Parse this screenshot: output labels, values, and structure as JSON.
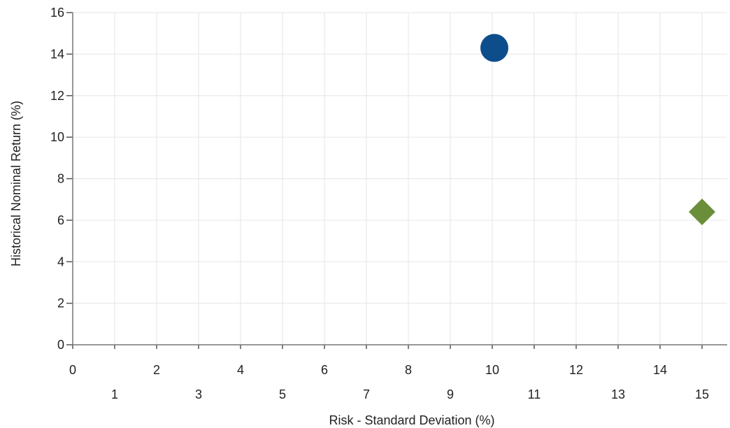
{
  "chart_data": {
    "type": "scatter",
    "title": "",
    "xlabel": "Risk - Standard Deviation (%)",
    "ylabel": "Historical Nominal Return (%)",
    "xlim": [
      0,
      15.6
    ],
    "ylim": [
      0,
      16
    ],
    "x_ticks_upper": [
      "0",
      "2",
      "4",
      "6",
      "8",
      "10",
      "12",
      "14"
    ],
    "x_ticks_lower": [
      "1",
      "3",
      "5",
      "7",
      "9",
      "11",
      "13",
      "15"
    ],
    "y_ticks": [
      "0",
      "2",
      "4",
      "6",
      "8",
      "10",
      "12",
      "14",
      "16"
    ],
    "grid": true,
    "series": [
      {
        "marker": "circle",
        "color": "#0d4d8c",
        "points": [
          {
            "x": 10.05,
            "y": 14.3
          }
        ]
      },
      {
        "marker": "diamond",
        "color": "#6b8e3a",
        "points": [
          {
            "x": 15.0,
            "y": 6.4
          }
        ]
      }
    ]
  }
}
